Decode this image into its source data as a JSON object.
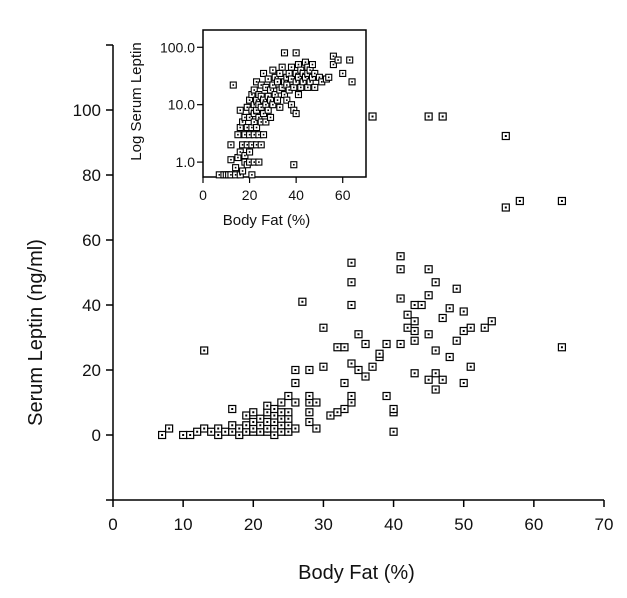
{
  "chart_data": [
    {
      "type": "scatter",
      "name": "main",
      "xlabel": "Body Fat (%)",
      "ylabel": "Serum Leptin (ng/ml)",
      "xlim": [
        0,
        70
      ],
      "ylim": [
        -20,
        120
      ],
      "xticks": [
        "0",
        "10",
        "20",
        "30",
        "40",
        "50",
        "60",
        "70"
      ],
      "yticks": [
        "0",
        "20",
        "40",
        "60",
        "80",
        "100"
      ],
      "grid": false,
      "marker": "open-square",
      "points": [
        [
          7,
          0
        ],
        [
          8,
          2
        ],
        [
          10,
          0
        ],
        [
          11,
          0
        ],
        [
          12,
          1
        ],
        [
          13,
          2
        ],
        [
          13,
          26
        ],
        [
          14,
          1
        ],
        [
          15,
          0
        ],
        [
          15,
          2
        ],
        [
          16,
          1
        ],
        [
          17,
          1
        ],
        [
          17,
          3
        ],
        [
          17,
          8
        ],
        [
          18,
          0
        ],
        [
          18,
          2
        ],
        [
          19,
          1
        ],
        [
          19,
          3
        ],
        [
          19,
          6
        ],
        [
          20,
          1
        ],
        [
          20,
          2
        ],
        [
          20,
          4
        ],
        [
          20,
          7
        ],
        [
          21,
          1
        ],
        [
          21,
          3
        ],
        [
          21,
          5
        ],
        [
          22,
          1
        ],
        [
          22,
          2
        ],
        [
          22,
          4
        ],
        [
          22,
          7
        ],
        [
          22,
          9
        ],
        [
          23,
          0
        ],
        [
          23,
          2
        ],
        [
          23,
          4
        ],
        [
          23,
          6
        ],
        [
          23,
          8
        ],
        [
          24,
          1
        ],
        [
          24,
          3
        ],
        [
          24,
          5
        ],
        [
          24,
          7
        ],
        [
          24,
          10
        ],
        [
          25,
          1
        ],
        [
          25,
          3
        ],
        [
          25,
          5
        ],
        [
          25,
          7
        ],
        [
          25,
          12
        ],
        [
          26,
          16
        ],
        [
          26,
          20
        ],
        [
          26,
          2
        ],
        [
          26,
          10
        ],
        [
          27,
          41
        ],
        [
          28,
          4
        ],
        [
          28,
          7
        ],
        [
          28,
          10
        ],
        [
          28,
          12
        ],
        [
          28,
          20
        ],
        [
          29,
          2
        ],
        [
          29,
          10
        ],
        [
          30,
          21
        ],
        [
          30,
          33
        ],
        [
          31,
          6
        ],
        [
          32,
          7
        ],
        [
          32,
          27
        ],
        [
          33,
          8
        ],
        [
          33,
          16
        ],
        [
          33,
          27
        ],
        [
          34,
          10
        ],
        [
          34,
          12
        ],
        [
          34,
          22
        ],
        [
          34,
          40
        ],
        [
          34,
          47
        ],
        [
          34,
          53
        ],
        [
          35,
          20
        ],
        [
          35,
          31
        ],
        [
          36,
          18
        ],
        [
          36,
          28
        ],
        [
          37,
          98
        ],
        [
          37,
          21
        ],
        [
          38,
          24
        ],
        [
          38,
          25
        ],
        [
          39,
          12
        ],
        [
          39,
          28
        ],
        [
          40,
          1
        ],
        [
          40,
          7
        ],
        [
          40,
          8
        ],
        [
          41,
          28
        ],
        [
          41,
          42
        ],
        [
          41,
          51
        ],
        [
          41,
          55
        ],
        [
          42,
          33
        ],
        [
          42,
          37
        ],
        [
          43,
          19
        ],
        [
          43,
          29
        ],
        [
          43,
          32
        ],
        [
          43,
          35
        ],
        [
          43,
          40
        ],
        [
          44,
          40
        ],
        [
          45,
          17
        ],
        [
          45,
          31
        ],
        [
          45,
          43
        ],
        [
          45,
          51
        ],
        [
          45,
          98
        ],
        [
          46,
          14
        ],
        [
          46,
          19
        ],
        [
          46,
          26
        ],
        [
          46,
          47
        ],
        [
          47,
          17
        ],
        [
          47,
          36
        ],
        [
          47,
          98
        ],
        [
          48,
          24
        ],
        [
          48,
          39
        ],
        [
          49,
          45
        ],
        [
          49,
          29
        ],
        [
          50,
          16
        ],
        [
          50,
          32
        ],
        [
          50,
          38
        ],
        [
          51,
          21
        ],
        [
          51,
          33
        ],
        [
          53,
          33
        ],
        [
          54,
          35
        ],
        [
          56,
          70
        ],
        [
          56,
          92
        ],
        [
          58,
          72
        ],
        [
          64,
          27
        ],
        [
          64,
          72
        ]
      ]
    },
    {
      "type": "scatter",
      "name": "inset",
      "xlabel": "Body Fat (%)",
      "ylabel": "Log Serum Leptin",
      "xlim": [
        0,
        70
      ],
      "ylim_log": [
        0.55,
        200
      ],
      "xticks": [
        "0",
        "20",
        "40",
        "60"
      ],
      "yticks": [
        "1.0",
        "10.0",
        "100.0"
      ],
      "scale_y": "log",
      "grid": false,
      "marker": "open-square",
      "points": [
        [
          7,
          0.6
        ],
        [
          9,
          0.6
        ],
        [
          10,
          0.6
        ],
        [
          11,
          0.6
        ],
        [
          12,
          0.6
        ],
        [
          12,
          1.1
        ],
        [
          12,
          2
        ],
        [
          13,
          22
        ],
        [
          14,
          0.6
        ],
        [
          14,
          0.8
        ],
        [
          15,
          1.2
        ],
        [
          15,
          3
        ],
        [
          16,
          0.6
        ],
        [
          16,
          1.5
        ],
        [
          16,
          4
        ],
        [
          16,
          8
        ],
        [
          17,
          0.7
        ],
        [
          17,
          2
        ],
        [
          17,
          5
        ],
        [
          18,
          1
        ],
        [
          18,
          1.3
        ],
        [
          18,
          3
        ],
        [
          18,
          6
        ],
        [
          19,
          0.9
        ],
        [
          19,
          2
        ],
        [
          19,
          4
        ],
        [
          19,
          9
        ],
        [
          20,
          1
        ],
        [
          20,
          1.5
        ],
        [
          20,
          3
        ],
        [
          20,
          6
        ],
        [
          20,
          12
        ],
        [
          21,
          0.6
        ],
        [
          21,
          2
        ],
        [
          21,
          4
        ],
        [
          21,
          8
        ],
        [
          21,
          15
        ],
        [
          22,
          1
        ],
        [
          22,
          3
        ],
        [
          22,
          5
        ],
        [
          22,
          7
        ],
        [
          22,
          10
        ],
        [
          22,
          18
        ],
        [
          23,
          2
        ],
        [
          23,
          4
        ],
        [
          23,
          8
        ],
        [
          23,
          12
        ],
        [
          23,
          25
        ],
        [
          24,
          1
        ],
        [
          24,
          3
        ],
        [
          24,
          6
        ],
        [
          24,
          10
        ],
        [
          24,
          15
        ],
        [
          25,
          2
        ],
        [
          25,
          5
        ],
        [
          25,
          9
        ],
        [
          25,
          14
        ],
        [
          25,
          22
        ],
        [
          26,
          3
        ],
        [
          26,
          7
        ],
        [
          26,
          12
        ],
        [
          26,
          35
        ],
        [
          27,
          5
        ],
        [
          27,
          10
        ],
        [
          27,
          20
        ],
        [
          28,
          8
        ],
        [
          28,
          14
        ],
        [
          28,
          28
        ],
        [
          29,
          6
        ],
        [
          29,
          12
        ],
        [
          29,
          18
        ],
        [
          30,
          10
        ],
        [
          30,
          22
        ],
        [
          30,
          40
        ],
        [
          31,
          15
        ],
        [
          31,
          30
        ],
        [
          32,
          12
        ],
        [
          32,
          25
        ],
        [
          33,
          9
        ],
        [
          33,
          18
        ],
        [
          33,
          35
        ],
        [
          34,
          20
        ],
        [
          34,
          45
        ],
        [
          35,
          15
        ],
        [
          35,
          25
        ],
        [
          35,
          80
        ],
        [
          36,
          12
        ],
        [
          36,
          22
        ],
        [
          36,
          30
        ],
        [
          37,
          18
        ],
        [
          37,
          35
        ],
        [
          38,
          10
        ],
        [
          38,
          28
        ],
        [
          38,
          45
        ],
        [
          39,
          0.9
        ],
        [
          39,
          8
        ],
        [
          39,
          20
        ],
        [
          40,
          7
        ],
        [
          40,
          25
        ],
        [
          40,
          35
        ],
        [
          40,
          80
        ],
        [
          41,
          15
        ],
        [
          41,
          30
        ],
        [
          41,
          50
        ],
        [
          42,
          20
        ],
        [
          42,
          40
        ],
        [
          43,
          25
        ],
        [
          43,
          35
        ],
        [
          44,
          30
        ],
        [
          44,
          55
        ],
        [
          45,
          20
        ],
        [
          45,
          35
        ],
        [
          45,
          45
        ],
        [
          46,
          25
        ],
        [
          46,
          40
        ],
        [
          47,
          30
        ],
        [
          47,
          50
        ],
        [
          48,
          20
        ],
        [
          48,
          35
        ],
        [
          50,
          30
        ],
        [
          51,
          25
        ],
        [
          53,
          28
        ],
        [
          54,
          30
        ],
        [
          56,
          70
        ],
        [
          56,
          50
        ],
        [
          58,
          60
        ],
        [
          60,
          35
        ],
        [
          63,
          60
        ],
        [
          64,
          25
        ]
      ]
    }
  ]
}
